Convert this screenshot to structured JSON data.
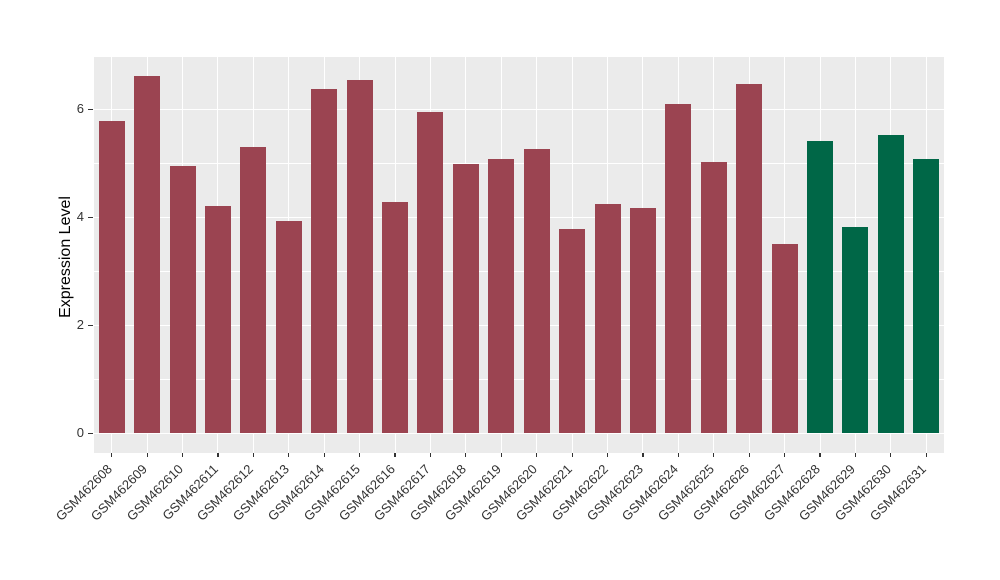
{
  "chart_data": {
    "type": "bar",
    "title": "",
    "xlabel": "",
    "ylabel": "Expression Level",
    "ylim": [
      0,
      6.97
    ],
    "yticks": [
      0,
      2,
      4,
      6
    ],
    "minor_gridlines": [
      1,
      3,
      5
    ],
    "grid": "on",
    "legend": "none",
    "categories": [
      "GSM462608",
      "GSM462609",
      "GSM462610",
      "GSM462611",
      "GSM462612",
      "GSM462613",
      "GSM462614",
      "GSM462615",
      "GSM462616",
      "GSM462617",
      "GSM462618",
      "GSM462619",
      "GSM462620",
      "GSM462621",
      "GSM462622",
      "GSM462623",
      "GSM462624",
      "GSM462625",
      "GSM462626",
      "GSM462627",
      "GSM462628",
      "GSM462629",
      "GSM462630",
      "GSM462631"
    ],
    "values": [
      5.78,
      6.62,
      4.95,
      4.21,
      5.31,
      3.93,
      6.37,
      6.55,
      4.28,
      5.95,
      4.99,
      5.08,
      5.27,
      3.78,
      4.24,
      4.17,
      6.1,
      5.02,
      6.48,
      3.5,
      5.41,
      3.83,
      5.53,
      5.08
    ],
    "bar_colors": [
      "#9B4451",
      "#9B4451",
      "#9B4451",
      "#9B4451",
      "#9B4451",
      "#9B4451",
      "#9B4451",
      "#9B4451",
      "#9B4451",
      "#9B4451",
      "#9B4451",
      "#9B4451",
      "#9B4451",
      "#9B4451",
      "#9B4451",
      "#9B4451",
      "#9B4451",
      "#9B4451",
      "#9B4451",
      "#9B4451",
      "#006747",
      "#006747",
      "#006747",
      "#006747"
    ]
  },
  "colors": {
    "bar_maroon": "#9B4451",
    "bar_green": "#006747",
    "panel_background": "#EBEBEB",
    "gridline": "#FFFFFF",
    "tick_text": "#333333",
    "axis_title_text": "#000000",
    "figure_background": "#FFFFFF"
  }
}
